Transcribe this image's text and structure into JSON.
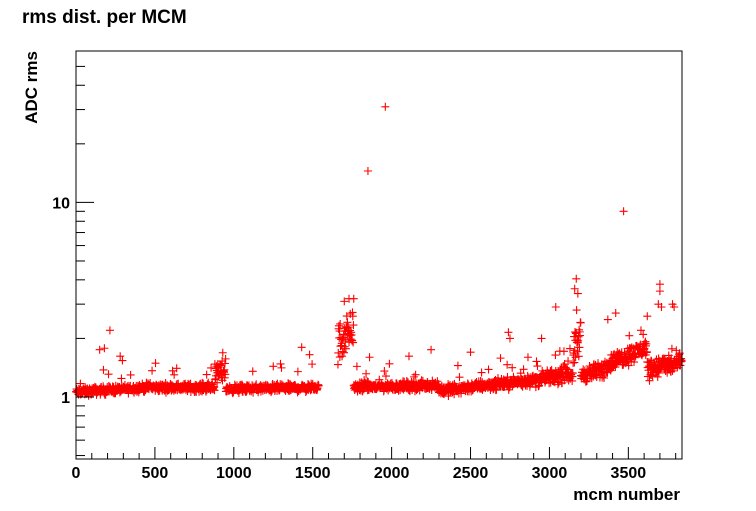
{
  "chart_data": {
    "type": "scatter",
    "title": "rms dist. per MCM",
    "xlabel": "mcm number",
    "ylabel": "ADC rms",
    "xlim": [
      0,
      3840
    ],
    "ylim": [
      0.48,
      60
    ],
    "yscale": "log",
    "grid": false,
    "legend": "none",
    "marker": "plus",
    "color": "#ff0000",
    "x_ticks": [
      0,
      500,
      1000,
      1500,
      2000,
      2500,
      3000,
      3500
    ],
    "x_tick_labels": [
      "0",
      "500",
      "1000",
      "1500",
      "2000",
      "2500",
      "3000",
      "3500"
    ],
    "y_ticks": [
      1,
      10
    ],
    "y_tick_labels": [
      "1",
      "10"
    ],
    "bands": [
      {
        "x0": 0,
        "x1": 450,
        "y0": 1.06,
        "y1": 1.12,
        "jitter": 0.07,
        "step": 2
      },
      {
        "x0": 450,
        "x1": 880,
        "y0": 1.12,
        "y1": 1.12,
        "jitter": 0.07,
        "step": 2
      },
      {
        "x0": 880,
        "x1": 950,
        "y0": 1.3,
        "y1": 1.4,
        "jitter": 0.18,
        "step": 2
      },
      {
        "x0": 950,
        "x1": 1540,
        "y0": 1.1,
        "y1": 1.12,
        "jitter": 0.07,
        "step": 2
      },
      {
        "x0": 1660,
        "x1": 1760,
        "y0": 1.9,
        "y1": 2.3,
        "jitter": 0.35,
        "step": 2
      },
      {
        "x0": 1760,
        "x1": 2300,
        "y0": 1.12,
        "y1": 1.15,
        "jitter": 0.08,
        "step": 2
      },
      {
        "x0": 2300,
        "x1": 2900,
        "y0": 1.08,
        "y1": 1.22,
        "jitter": 0.09,
        "step": 2
      },
      {
        "x0": 2900,
        "x1": 3150,
        "y0": 1.22,
        "y1": 1.32,
        "jitter": 0.12,
        "step": 2
      },
      {
        "x0": 3150,
        "x1": 3200,
        "y0": 1.7,
        "y1": 2.1,
        "jitter": 0.3,
        "step": 2
      },
      {
        "x0": 3200,
        "x1": 3350,
        "y0": 1.3,
        "y1": 1.38,
        "jitter": 0.14,
        "step": 2
      },
      {
        "x0": 3350,
        "x1": 3620,
        "y0": 1.45,
        "y1": 1.8,
        "jitter": 0.15,
        "step": 2
      },
      {
        "x0": 3620,
        "x1": 3840,
        "y0": 1.4,
        "y1": 1.5,
        "jitter": 0.18,
        "step": 2
      }
    ],
    "outliers": [
      {
        "x": 1850,
        "y": 14.5
      },
      {
        "x": 1960,
        "y": 31
      },
      {
        "x": 3470,
        "y": 9
      },
      {
        "x": 215,
        "y": 2.2
      },
      {
        "x": 180,
        "y": 1.78
      },
      {
        "x": 150,
        "y": 1.75
      },
      {
        "x": 280,
        "y": 1.62
      },
      {
        "x": 1430,
        "y": 1.8
      },
      {
        "x": 1480,
        "y": 1.65
      },
      {
        "x": 1730,
        "y": 3.2
      },
      {
        "x": 1700,
        "y": 3.1
      },
      {
        "x": 1760,
        "y": 3.2
      },
      {
        "x": 1860,
        "y": 1.6
      },
      {
        "x": 2110,
        "y": 1.62
      },
      {
        "x": 2250,
        "y": 1.75
      },
      {
        "x": 2500,
        "y": 1.7
      },
      {
        "x": 2740,
        "y": 2.15
      },
      {
        "x": 2750,
        "y": 2.0
      },
      {
        "x": 2950,
        "y": 2.0
      },
      {
        "x": 3040,
        "y": 2.9
      },
      {
        "x": 3170,
        "y": 4.05
      },
      {
        "x": 3160,
        "y": 3.6
      },
      {
        "x": 3180,
        "y": 3.4
      },
      {
        "x": 3370,
        "y": 2.5
      },
      {
        "x": 3420,
        "y": 2.7
      },
      {
        "x": 3700,
        "y": 3.8
      },
      {
        "x": 3700,
        "y": 3.5
      },
      {
        "x": 3690,
        "y": 3.0
      },
      {
        "x": 3710,
        "y": 2.9
      },
      {
        "x": 3780,
        "y": 3.0
      },
      {
        "x": 3790,
        "y": 2.9
      },
      {
        "x": 3620,
        "y": 2.6
      },
      {
        "x": 3580,
        "y": 2.2
      }
    ]
  }
}
